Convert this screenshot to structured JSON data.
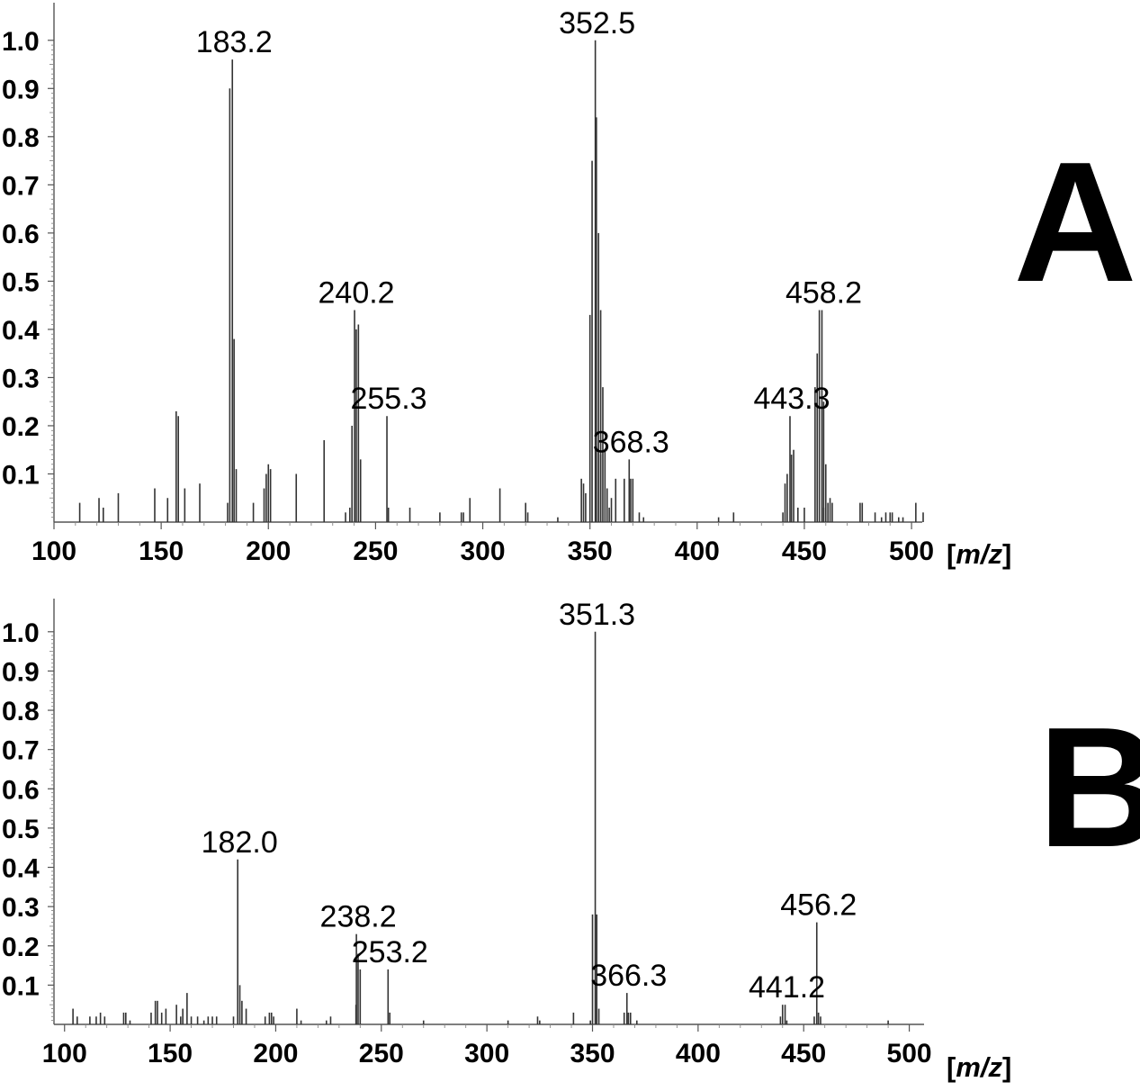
{
  "chart_data": [
    {
      "type": "bar",
      "panel_label": "A",
      "xlabel_prefix": "[",
      "xlabel_var": "m/z",
      "xlabel_suffix": "]",
      "xlim": [
        100,
        505
      ],
      "ylim": [
        0,
        1.05
      ],
      "xticks": [
        "100",
        "150",
        "200",
        "250",
        "300",
        "350",
        "400",
        "450",
        "500"
      ],
      "yticks": [
        "0.1",
        "0.2",
        "0.3",
        "0.4",
        "0.5",
        "0.6",
        "0.7",
        "0.8",
        "0.9",
        "1.0"
      ],
      "grid": false,
      "series": [
        {
          "x": [
            112,
            121,
            123,
            130,
            147,
            153,
            157,
            158,
            161,
            168,
            181,
            182,
            183.2,
            184,
            185,
            193,
            198,
            199,
            200,
            201,
            213,
            226,
            236,
            238,
            239,
            240.2,
            241,
            242,
            243,
            255.3,
            256,
            266,
            280,
            290,
            291,
            294,
            308,
            320,
            321,
            335,
            346,
            347,
            348,
            350,
            351,
            352.5,
            353,
            354,
            355,
            360,
            362,
            366,
            368.3,
            369,
            370,
            373,
            375,
            410,
            417,
            440,
            441,
            442,
            443.3,
            444,
            445,
            447,
            450,
            455,
            456,
            457,
            458.2,
            459,
            462,
            463,
            476,
            477,
            483,
            486,
            488,
            490,
            491,
            494,
            496,
            502,
            507
          ],
          "y": [
            0.04,
            0.05,
            0.03,
            0.06,
            0.07,
            0.05,
            0.23,
            0.22,
            0.07,
            0.08,
            0.04,
            0.9,
            0.96,
            0.38,
            0.11,
            0.04,
            0.07,
            0.1,
            0.12,
            0.11,
            0.1,
            0.17,
            0.02,
            0.03,
            0.2,
            0.44,
            0.4,
            0.41,
            0.13,
            0.22,
            0.03,
            0.03,
            0.02,
            0.02,
            0.02,
            0.05,
            0.07,
            0.04,
            0.02,
            0.01,
            0.09,
            0.08,
            0.06,
            0.43,
            0.75,
            1.0,
            0.84,
            0.17,
            0.14,
            0.05,
            0.09,
            0.09,
            0.13,
            0.09,
            0.09,
            0.02,
            0.01,
            0.01,
            0.02,
            0.02,
            0.08,
            0.1,
            0.22,
            0.14,
            0.15,
            0.03,
            0.03,
            0.28,
            0.35,
            0.44,
            0.44,
            0.03,
            0.05,
            0.04,
            0.04,
            0.04,
            0.02,
            0.01,
            0.02,
            0.02,
            0.02,
            0.01,
            0.01,
            0.04,
            0.02
          ]
        },
        {
          "color": "#ee5555",
          "x": [
            354,
            355,
            356,
            357,
            358,
            359,
            459,
            460,
            461
          ],
          "y": [
            0.6,
            0.44,
            0.28,
            0.15,
            0.07,
            0.03,
            0.25,
            0.12,
            0.04
          ]
        }
      ],
      "annotations": [
        {
          "text": "183.2",
          "x": 183.2,
          "y": 0.96
        },
        {
          "text": "352.5",
          "x": 352.5,
          "y": 1.0
        },
        {
          "text": "240.2",
          "x": 240.2,
          "y": 0.44
        },
        {
          "text": "255.3",
          "x": 255.3,
          "y": 0.22
        },
        {
          "text": "368.3",
          "x": 368.3,
          "y": 0.13
        },
        {
          "text": "443.3",
          "x": 443.3,
          "y": 0.22
        },
        {
          "text": "458.2",
          "x": 458.2,
          "y": 0.44
        }
      ]
    },
    {
      "type": "bar",
      "panel_label": "B",
      "xlabel_prefix": "[",
      "xlabel_var": "m/z",
      "xlabel_suffix": "]",
      "xlim": [
        95,
        507
      ],
      "ylim": [
        0,
        1.05
      ],
      "xticks": [
        "100",
        "150",
        "200",
        "250",
        "300",
        "350",
        "400",
        "450",
        "500"
      ],
      "yticks": [
        "0.1",
        "0.2",
        "0.3",
        "0.4",
        "0.5",
        "0.6",
        "0.7",
        "0.8",
        "0.9",
        "1.0"
      ],
      "grid": false,
      "series": [
        {
          "x": [
            104,
            106,
            112,
            115,
            117,
            119,
            128,
            129,
            131,
            141,
            143,
            144,
            146,
            148,
            153,
            155,
            156,
            158,
            160,
            163,
            166,
            168,
            170,
            172,
            180,
            182.0,
            183,
            184,
            186,
            195,
            197,
            198,
            199,
            210,
            212,
            224,
            226,
            238,
            238.2,
            239,
            240,
            253.2,
            254,
            270,
            310,
            324,
            325,
            341,
            349,
            350,
            351.3,
            352,
            353,
            365,
            366.3,
            367,
            368,
            371,
            439,
            440,
            441.2,
            442,
            455,
            456.2,
            457,
            458,
            490
          ],
          "y": [
            0.04,
            0.02,
            0.02,
            0.02,
            0.03,
            0.02,
            0.03,
            0.03,
            0.01,
            0.03,
            0.06,
            0.06,
            0.03,
            0.04,
            0.05,
            0.02,
            0.04,
            0.08,
            0.02,
            0.02,
            0.01,
            0.02,
            0.02,
            0.02,
            0.02,
            0.42,
            0.1,
            0.06,
            0.04,
            0.02,
            0.03,
            0.03,
            0.02,
            0.04,
            0.01,
            0.01,
            0.02,
            0.05,
            0.23,
            0.18,
            0.14,
            0.14,
            0.03,
            0.01,
            0.01,
            0.02,
            0.01,
            0.03,
            0.01,
            0.28,
            1.0,
            0.28,
            0.04,
            0.03,
            0.08,
            0.03,
            0.03,
            0.01,
            0.02,
            0.05,
            0.05,
            0.01,
            0.02,
            0.26,
            0.03,
            0.02,
            0.01
          ]
        }
      ],
      "annotations": [
        {
          "text": "182.0",
          "x": 182.0,
          "y": 0.42
        },
        {
          "text": "351.3",
          "x": 351.3,
          "y": 1.0
        },
        {
          "text": "238.2",
          "x": 238.2,
          "y": 0.23
        },
        {
          "text": "253.2",
          "x": 253.2,
          "y": 0.14
        },
        {
          "text": "366.3",
          "x": 366.3,
          "y": 0.08
        },
        {
          "text": "441.2",
          "x": 441.2,
          "y": 0.05
        },
        {
          "text": "456.2",
          "x": 456.2,
          "y": 0.26
        }
      ]
    }
  ]
}
